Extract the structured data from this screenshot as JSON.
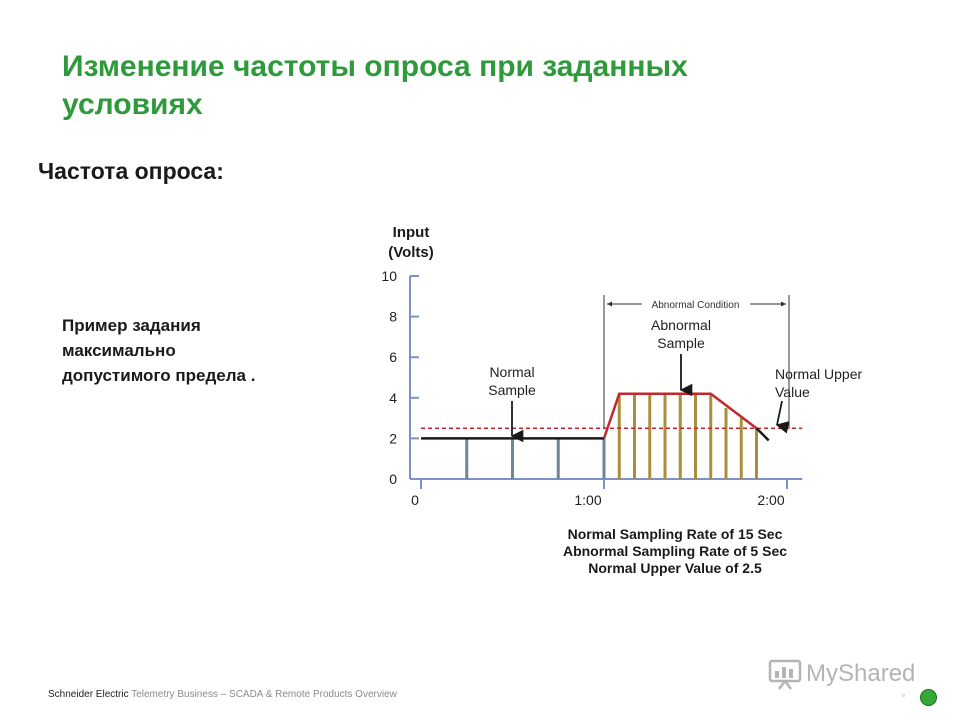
{
  "slide": {
    "title": "Изменение частоты опроса при заданных условиях",
    "subtitle": "Частота опроса:",
    "note_lines": [
      "Пример задания",
      "максимально",
      "допустимого предела ."
    ]
  },
  "footer": {
    "text": "Schneider Electric",
    "text_overlap": "Telemetry Business – SCADA & Remote Products Overview",
    "page_marker": "·₂"
  },
  "watermark": {
    "text": "MyShared"
  },
  "colors": {
    "title_green": "#2e9a3c",
    "axis_blue": "#7f8fc8",
    "signal_red": "#c0282d",
    "abnormal_sample": "#a88f3c",
    "normal_sample": "#71849a",
    "limit_dash": "#d0202a",
    "status_dot": "#35a936"
  },
  "chart_data": {
    "type": "line",
    "title": "",
    "ylabel": "Input (Volts)",
    "y_ticks": [
      0,
      2,
      4,
      6,
      8,
      10
    ],
    "ylim": [
      0,
      10
    ],
    "x_tick_labels": [
      {
        "t": 0,
        "label": "0"
      },
      {
        "t": 60,
        "label": "1:00"
      },
      {
        "t": 120,
        "label": "2:00"
      }
    ],
    "xlim": [
      0,
      125
    ],
    "grid": false,
    "series": [
      {
        "name": "",
        "segments": [
          {
            "color": "black",
            "points": [
              [
                0,
                2
              ],
              [
                60,
                2
              ]
            ]
          },
          {
            "color": "red",
            "points": [
              [
                60,
                2
              ],
              [
                65,
                4.2
              ],
              [
                95,
                4.2
              ],
              [
                110,
                2.5
              ]
            ]
          },
          {
            "color": "black",
            "points": [
              [
                110,
                2.5
              ],
              [
                114,
                1.9
              ]
            ]
          }
        ]
      }
    ],
    "normal_samples": [
      {
        "t": 15,
        "v": 2
      },
      {
        "t": 30,
        "v": 2
      },
      {
        "t": 45,
        "v": 2
      },
      {
        "t": 60,
        "v": 2
      }
    ],
    "abnormal_samples": [
      {
        "t": 65,
        "v": 4.2
      },
      {
        "t": 70,
        "v": 4.2
      },
      {
        "t": 75,
        "v": 4.2
      },
      {
        "t": 80,
        "v": 4.2
      },
      {
        "t": 85,
        "v": 4.2
      },
      {
        "t": 90,
        "v": 4.2
      },
      {
        "t": 95,
        "v": 4.2
      },
      {
        "t": 100,
        "v": 3.5
      },
      {
        "t": 105,
        "v": 3.0
      },
      {
        "t": 110,
        "v": 2.5
      }
    ],
    "normal_upper_value": 2.5,
    "abnormal_condition_range": [
      60,
      120
    ],
    "annotations": {
      "abnormal_condition": "Abnormal Condition",
      "abnormal_sample": [
        "Abnormal",
        "Sample"
      ],
      "normal_sample": [
        "Normal",
        "Sample"
      ],
      "normal_upper_value": [
        "Normal Upper",
        "Value"
      ]
    },
    "caption_lines": [
      "Normal Sampling Rate of 15 Sec",
      "Abnormal Sampling Rate of 5 Sec",
      "Normal Upper Value of 2.5"
    ]
  }
}
